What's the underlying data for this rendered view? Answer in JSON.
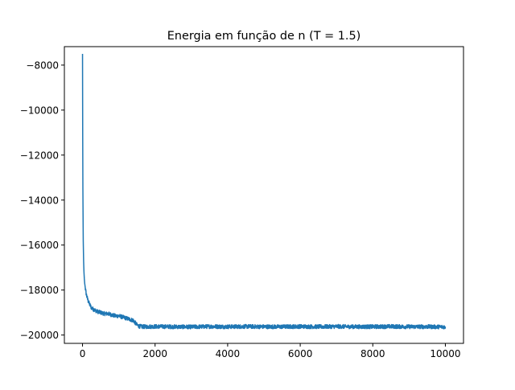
{
  "chart_data": {
    "type": "line",
    "title": "Energia em função de n (T = 1.5)",
    "xlabel": "",
    "ylabel": "",
    "xlim": [
      -500,
      10500
    ],
    "ylim": [
      -20370,
      -7180
    ],
    "xticks": [
      0,
      2000,
      4000,
      6000,
      8000,
      10000
    ],
    "xtick_labels": [
      "0",
      "2000",
      "4000",
      "6000",
      "8000",
      "10000"
    ],
    "yticks": [
      -8000,
      -10000,
      -12000,
      -14000,
      -16000,
      -18000,
      -20000
    ],
    "ytick_labels": [
      "−8000",
      "−10000",
      "−12000",
      "−14000",
      "−16000",
      "−18000",
      "−20000"
    ],
    "grid": false,
    "legend": "none",
    "series": [
      {
        "color": "#1f77b4",
        "x": [
          0,
          5,
          10,
          20,
          30,
          40,
          50,
          60,
          80,
          100,
          130,
          160,
          200,
          250,
          300,
          400,
          500,
          600,
          700,
          800,
          900,
          1000,
          1100,
          1200,
          1300,
          1400,
          1450,
          1500,
          1550,
          1600,
          1700,
          2000,
          2500,
          3000,
          3500,
          4000,
          4500,
          5000,
          5500,
          6000,
          6500,
          7000,
          7500,
          8000,
          8500,
          9000,
          9500,
          10000
        ],
        "y": [
          -7500,
          -11000,
          -13500,
          -15800,
          -16700,
          -17200,
          -17500,
          -17700,
          -17950,
          -18150,
          -18350,
          -18500,
          -18650,
          -18800,
          -18850,
          -18950,
          -19000,
          -19050,
          -19050,
          -19100,
          -19150,
          -19150,
          -19200,
          -19250,
          -19300,
          -19350,
          -19450,
          -19550,
          -19600,
          -19620,
          -19630,
          -19620,
          -19630,
          -19640,
          -19620,
          -19630,
          -19620,
          -19630,
          -19630,
          -19620,
          -19630,
          -19620,
          -19630,
          -19630,
          -19620,
          -19630,
          -19630,
          -19640
        ],
        "noise_amplitude": 90
      }
    ]
  }
}
